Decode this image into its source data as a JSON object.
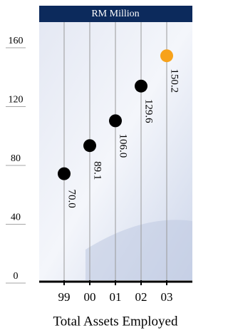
{
  "chart_data": {
    "type": "dot",
    "title": "RM Million",
    "x_label": "Total Assets Employed",
    "categories": [
      "99",
      "00",
      "01",
      "02",
      "03"
    ],
    "values": [
      70.0,
      89.1,
      106.0,
      129.6,
      150.2
    ],
    "value_labels": [
      "70.0",
      "89.1",
      "106.0",
      "129.6",
      "150.2"
    ],
    "colors": [
      "#000000",
      "#000000",
      "#000000",
      "#000000",
      "#f7a21b"
    ],
    "ylim": [
      0,
      160
    ],
    "yticks": [
      0,
      40,
      80,
      120,
      160
    ]
  }
}
